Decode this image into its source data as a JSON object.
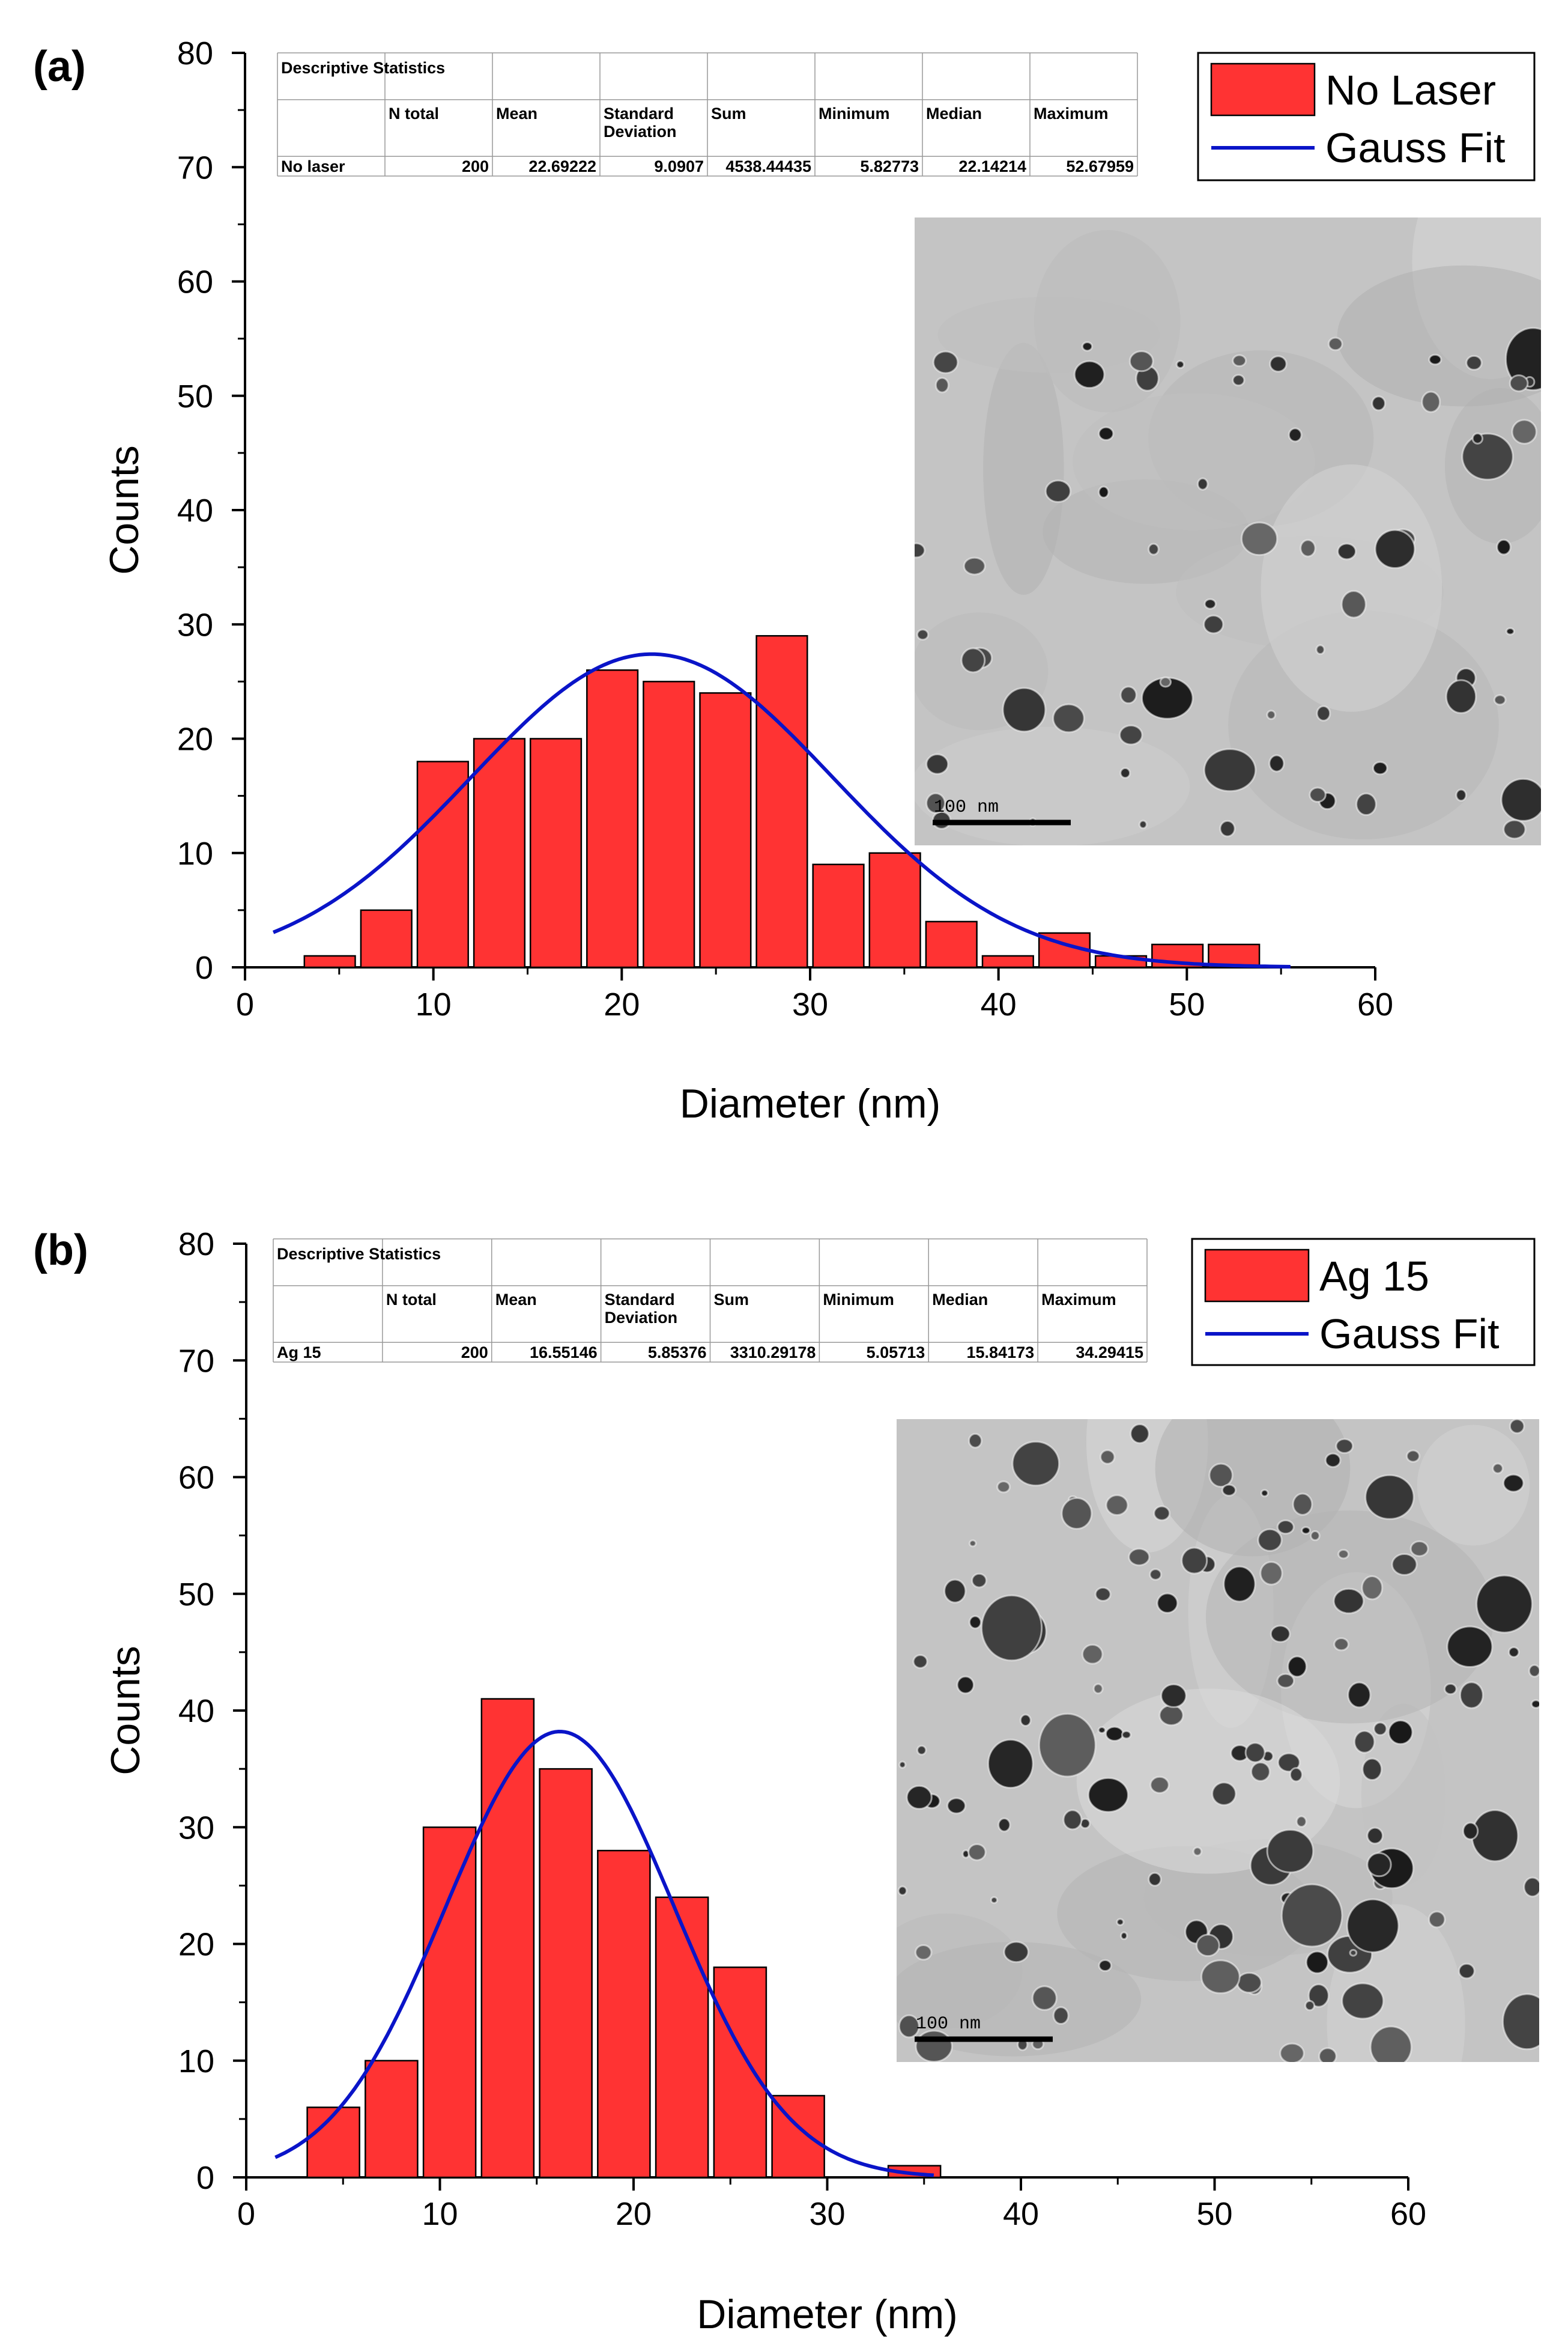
{
  "chart_data": [
    {
      "type": "bar",
      "panel_label": "(a)",
      "title": "",
      "xlabel": "Diameter (nm)",
      "ylabel": "Counts",
      "xlim": [
        0,
        60
      ],
      "ylim": [
        0,
        80
      ],
      "x_ticks": [
        0,
        10,
        20,
        30,
        40,
        50,
        60
      ],
      "y_ticks": [
        0,
        10,
        20,
        30,
        40,
        50,
        60,
        70,
        80
      ],
      "bin_width": 3,
      "bin_centers": [
        4.5,
        7.5,
        10.5,
        13.5,
        16.5,
        19.5,
        22.5,
        25.5,
        28.5,
        31.5,
        34.5,
        37.5,
        40.5,
        43.5,
        46.5,
        49.5,
        52.5
      ],
      "values": [
        1,
        5,
        18,
        20,
        20,
        26,
        25,
        24,
        29,
        9,
        10,
        4,
        1,
        3,
        1,
        2,
        2
      ],
      "bar_color": "#ff3333",
      "fit": {
        "name": "Gauss Fit",
        "color": "#0a14c8",
        "center": 21.6,
        "sigma": 9.6,
        "amplitude": 27.4,
        "x_range": [
          1.5,
          55.5
        ]
      },
      "legend": [
        "No Laser",
        "Gauss Fit"
      ],
      "legend_position": "top-right",
      "inset_image": {
        "scale_bar": "100 nm"
      },
      "stats_table": {
        "title": "Descriptive Statistics",
        "headers": [
          "",
          "N total",
          "Mean",
          "Standard Deviation",
          "Sum",
          "Minimum",
          "Median",
          "Maximum"
        ],
        "row": [
          "No laser",
          "200",
          "22.69222",
          "9.0907",
          "4538.44435",
          "5.82773",
          "22.14214",
          "52.67959"
        ]
      }
    },
    {
      "type": "bar",
      "panel_label": "(b)",
      "title": "",
      "xlabel": "Diameter (nm)",
      "ylabel": "Counts",
      "xlim": [
        0,
        60
      ],
      "ylim": [
        0,
        80
      ],
      "x_ticks": [
        0,
        10,
        20,
        30,
        40,
        50,
        60
      ],
      "y_ticks": [
        0,
        10,
        20,
        30,
        40,
        50,
        60,
        70,
        80
      ],
      "bin_width": 3,
      "bin_centers": [
        4.5,
        7.5,
        10.5,
        13.5,
        16.5,
        19.5,
        22.5,
        25.5,
        28.5,
        34.5
      ],
      "values": [
        6,
        10,
        30,
        41,
        35,
        28,
        24,
        18,
        7,
        1
      ],
      "bar_color": "#ff3333",
      "fit": {
        "name": "Gauss Fit",
        "color": "#0a14c8",
        "center": 16.2,
        "sigma": 5.9,
        "amplitude": 38.2,
        "x_range": [
          1.5,
          35.5
        ]
      },
      "legend": [
        "Ag 15",
        "Gauss Fit"
      ],
      "legend_position": "top-right",
      "inset_image": {
        "scale_bar": "100 nm"
      },
      "stats_table": {
        "title": "Descriptive Statistics",
        "headers": [
          "",
          "N total",
          "Mean",
          "Standard Deviation",
          "Sum",
          "Minimum",
          "Median",
          "Maximum"
        ],
        "row": [
          "Ag 15",
          "200",
          "16.55146",
          "5.85376",
          "3310.29178",
          "5.05713",
          "15.84173",
          "34.29415"
        ]
      }
    }
  ]
}
